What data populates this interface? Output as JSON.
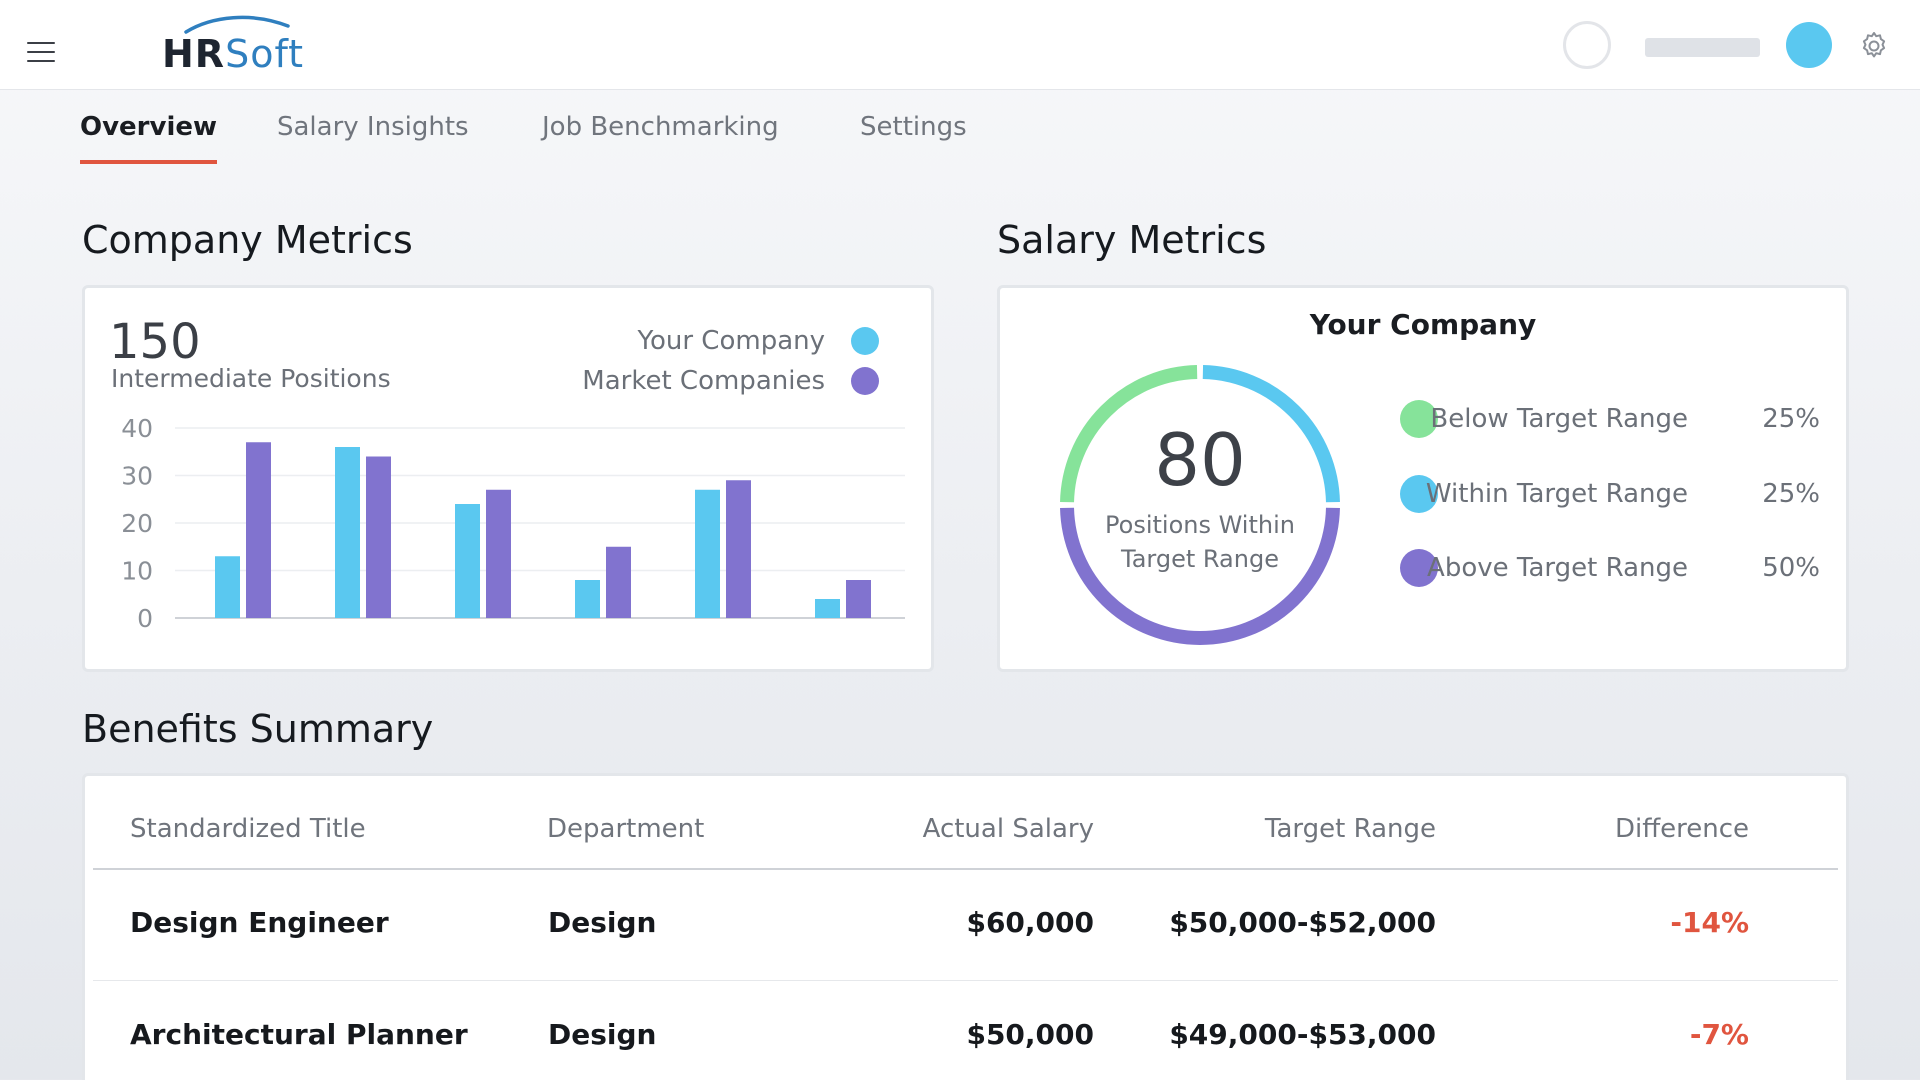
{
  "app": {
    "logo_hr": "HR",
    "logo_soft": "Soft"
  },
  "icons": {
    "menu": "hamburger-icon",
    "settings": "gear-icon",
    "avatar": "avatar"
  },
  "colors": {
    "accent": "#e0553f",
    "your_company": "#5ac8f0",
    "market": "#8173cf",
    "below": "#86e39a",
    "within": "#5ac8f0",
    "above": "#8173cf",
    "negative": "#e0553f"
  },
  "tabs": [
    {
      "label": "Overview",
      "active": true
    },
    {
      "label": "Salary Insights",
      "active": false
    },
    {
      "label": "Job Benchmarking",
      "active": false
    },
    {
      "label": "Settings",
      "active": false
    }
  ],
  "company_metrics": {
    "title": "Company Metrics",
    "count": "150",
    "count_label": "Intermediate Positions",
    "legend": [
      "Your Company",
      "Market Companies"
    ]
  },
  "salary_metrics": {
    "title": "Salary Metrics",
    "heading": "Your Company",
    "center_value": "80",
    "center_caption_line1": "Positions Within",
    "center_caption_line2": "Target Range",
    "ranges": [
      {
        "label": "Below Target Range",
        "percent": "25%",
        "value": 25
      },
      {
        "label": "Within Target Range",
        "percent": "25%",
        "value": 25
      },
      {
        "label": "Above Target Range",
        "percent": "50%",
        "value": 50
      }
    ]
  },
  "benefits": {
    "title": "Benefits Summary",
    "columns": [
      "Standardized Title",
      "Department",
      "Actual Salary",
      "Target Range",
      "Difference"
    ],
    "rows": [
      {
        "title": "Design Engineer",
        "department": "Design",
        "salary": "$60,000",
        "range": "$50,000-$52,000",
        "difference": "-14%"
      },
      {
        "title": "Architectural Planner",
        "department": "Design",
        "salary": "$50,000",
        "range": "$49,000-$53,000",
        "difference": "-7%"
      }
    ]
  },
  "chart_data": {
    "type": "bar",
    "title": "",
    "xlabel": "",
    "ylabel": "",
    "ylim": [
      0,
      40
    ],
    "yticks": [
      0,
      10,
      20,
      30,
      40
    ],
    "categories": [
      "",
      "",
      "",
      "",
      "",
      ""
    ],
    "series": [
      {
        "name": "Your Company",
        "values": [
          13,
          36,
          24,
          8,
          27,
          4
        ]
      },
      {
        "name": "Market Companies",
        "values": [
          37,
          34,
          27,
          15,
          29,
          8
        ]
      }
    ],
    "grid": true,
    "legend": "top-right"
  }
}
